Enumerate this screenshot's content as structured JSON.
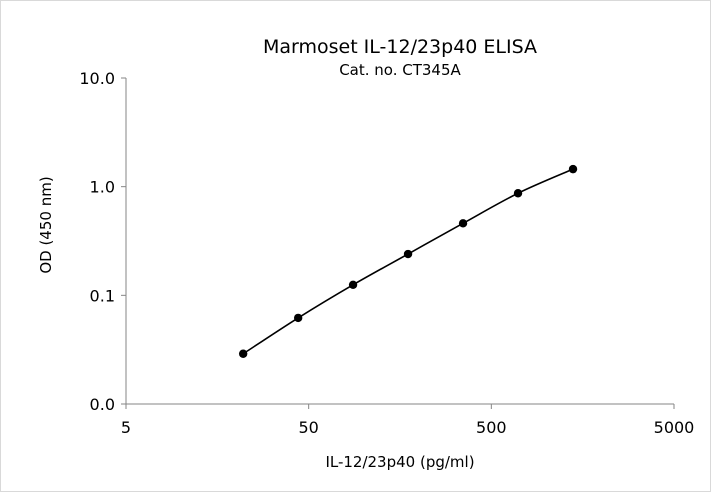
{
  "chart_data": {
    "type": "line",
    "title": "Marmoset IL-12/23p40 ELISA",
    "subtitle": "Cat. no. CT345A",
    "xlabel": "IL-12/23p40 (pg/ml)",
    "ylabel": "OD (450 nm)",
    "x_scale": "log",
    "y_scale": "log",
    "xlim": [
      5,
      5000
    ],
    "ylim": [
      0.01,
      10
    ],
    "x_ticks": [
      5,
      50,
      500,
      5000
    ],
    "x_tick_labels": [
      "5",
      "50",
      "500",
      "5000"
    ],
    "y_ticks": [
      0.01,
      0.1,
      1,
      10
    ],
    "y_tick_labels": [
      "0.0",
      "0.1",
      "1.0",
      "10.0"
    ],
    "grid": false,
    "legend": false,
    "series": [
      {
        "x": [
          21.9,
          43.8,
          87.5,
          175,
          350,
          700,
          1400
        ],
        "y": [
          0.029,
          0.062,
          0.125,
          0.24,
          0.46,
          0.87,
          1.45
        ]
      }
    ]
  }
}
